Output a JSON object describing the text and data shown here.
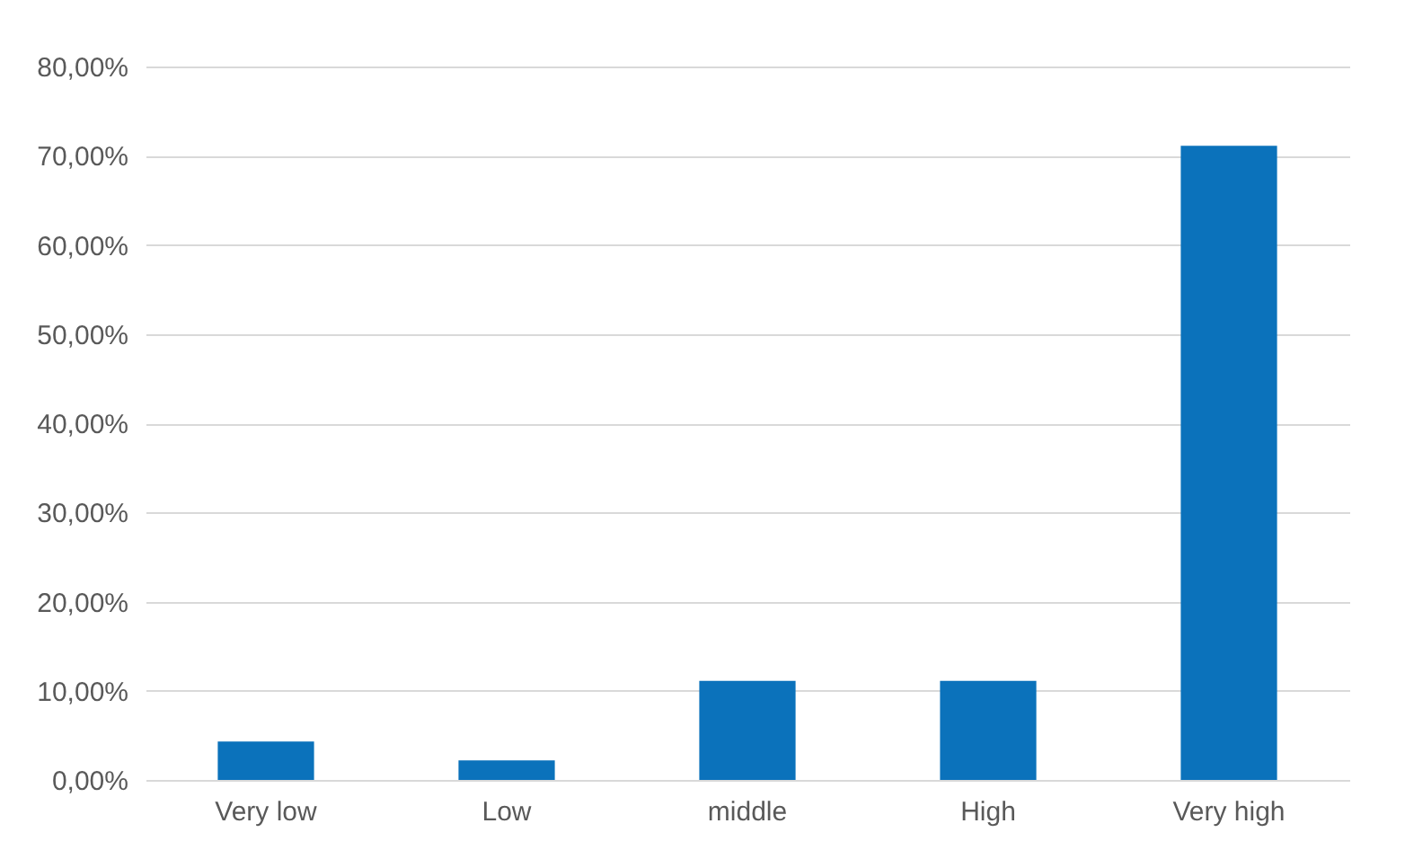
{
  "chart_data": {
    "type": "bar",
    "categories": [
      "Very low",
      "Low",
      "middle",
      "High",
      "Very high"
    ],
    "values": [
      4.3,
      2.2,
      11.1,
      11.1,
      71.1
    ],
    "color": "#0b72bb",
    "ylim": [
      0,
      80
    ],
    "yticks": [
      {
        "value": 0,
        "label": "0,00%"
      },
      {
        "value": 10,
        "label": "10,00%"
      },
      {
        "value": 20,
        "label": "20,00%"
      },
      {
        "value": 30,
        "label": "30,00%"
      },
      {
        "value": 40,
        "label": "40,00%"
      },
      {
        "value": 50,
        "label": "50,00%"
      },
      {
        "value": 60,
        "label": "60,00%"
      },
      {
        "value": 70,
        "label": "70,00%"
      },
      {
        "value": 80,
        "label": "80,00%"
      }
    ],
    "grid": "y"
  }
}
